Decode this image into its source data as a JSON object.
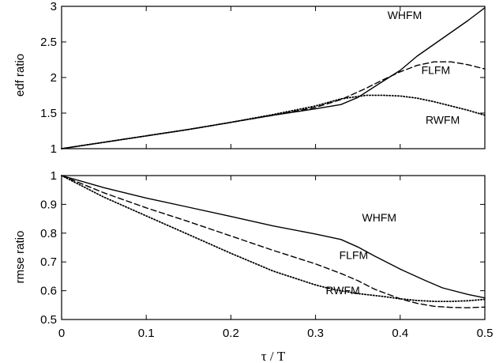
{
  "chart_data": [
    {
      "type": "line",
      "ylabel": "edf ratio",
      "xlim": [
        0,
        0.5
      ],
      "ylim": [
        1,
        3
      ],
      "yticks": [
        "1",
        "1.5",
        "2",
        "2.5",
        "3"
      ],
      "series": [
        {
          "name": "WHFM",
          "style": "solid",
          "x": [
            0,
            0.05,
            0.1,
            0.15,
            0.2,
            0.25,
            0.3,
            0.33,
            0.35,
            0.38,
            0.4,
            0.42,
            0.45,
            0.48,
            0.5
          ],
          "y": [
            1,
            1.09,
            1.18,
            1.27,
            1.37,
            1.47,
            1.56,
            1.62,
            1.72,
            1.95,
            2.1,
            2.3,
            2.55,
            2.8,
            2.98
          ]
        },
        {
          "name": "FLFM",
          "style": "dashed",
          "x": [
            0,
            0.05,
            0.1,
            0.15,
            0.2,
            0.25,
            0.3,
            0.33,
            0.36,
            0.38,
            0.4,
            0.42,
            0.44,
            0.46,
            0.48,
            0.5
          ],
          "y": [
            1,
            1.09,
            1.18,
            1.27,
            1.37,
            1.47,
            1.58,
            1.69,
            1.85,
            1.97,
            2.08,
            2.17,
            2.22,
            2.22,
            2.18,
            2.12
          ]
        },
        {
          "name": "RWFM",
          "style": "dotted",
          "x": [
            0,
            0.05,
            0.1,
            0.15,
            0.2,
            0.25,
            0.3,
            0.33,
            0.36,
            0.38,
            0.4,
            0.42,
            0.44,
            0.46,
            0.48,
            0.5
          ],
          "y": [
            1,
            1.09,
            1.18,
            1.27,
            1.37,
            1.48,
            1.6,
            1.7,
            1.75,
            1.75,
            1.74,
            1.71,
            1.66,
            1.6,
            1.54,
            1.47
          ]
        }
      ]
    },
    {
      "type": "line",
      "ylabel": "rmse ratio",
      "xlabel": "τ / T",
      "xlim": [
        0,
        0.5
      ],
      "ylim": [
        0.5,
        1
      ],
      "xticks": [
        "0",
        "0.1",
        "0.2",
        "0.3",
        "0.4",
        "0.5"
      ],
      "yticks": [
        "0.5",
        "0.6",
        "0.7",
        "0.8",
        "0.9",
        "1"
      ],
      "series": [
        {
          "name": "WHFM",
          "style": "solid",
          "x": [
            0,
            0.05,
            0.1,
            0.15,
            0.2,
            0.25,
            0.3,
            0.33,
            0.35,
            0.37,
            0.4,
            0.43,
            0.45,
            0.48,
            0.5
          ],
          "y": [
            1,
            0.958,
            0.922,
            0.89,
            0.858,
            0.825,
            0.797,
            0.778,
            0.752,
            0.72,
            0.675,
            0.635,
            0.61,
            0.587,
            0.575
          ]
        },
        {
          "name": "FLFM",
          "style": "dashed",
          "x": [
            0,
            0.05,
            0.1,
            0.15,
            0.2,
            0.25,
            0.3,
            0.33,
            0.35,
            0.37,
            0.4,
            0.42,
            0.44,
            0.46,
            0.48,
            0.5
          ],
          "y": [
            1,
            0.94,
            0.888,
            0.84,
            0.79,
            0.74,
            0.693,
            0.66,
            0.635,
            0.605,
            0.572,
            0.556,
            0.546,
            0.542,
            0.541,
            0.543
          ]
        },
        {
          "name": "RWFM",
          "style": "dotted",
          "x": [
            0,
            0.05,
            0.1,
            0.15,
            0.2,
            0.25,
            0.3,
            0.32,
            0.35,
            0.38,
            0.4,
            0.42,
            0.44,
            0.46,
            0.48,
            0.5
          ],
          "y": [
            1,
            0.925,
            0.86,
            0.795,
            0.73,
            0.668,
            0.62,
            0.605,
            0.59,
            0.58,
            0.572,
            0.566,
            0.563,
            0.563,
            0.565,
            0.57
          ]
        }
      ]
    }
  ]
}
